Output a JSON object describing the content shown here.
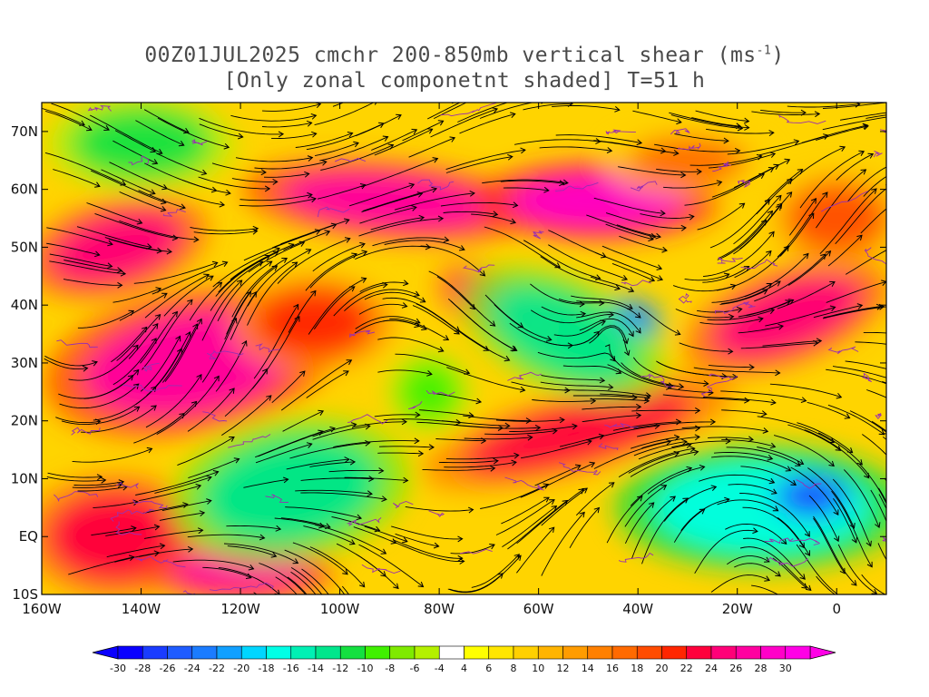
{
  "title": {
    "line1_prefix": "00Z01JUL2025 cmchr 200-850mb vertical shear (ms",
    "line1_sup": "-1",
    "line1_suffix": ")",
    "line2": "[Only zonal componetnt shaded] T=51 h"
  },
  "axes": {
    "lon_labels": [
      "160W",
      "140W",
      "120W",
      "100W",
      "80W",
      "60W",
      "40W",
      "20W",
      "0"
    ],
    "lon_values": [
      -160,
      -140,
      -120,
      -100,
      -80,
      -60,
      -40,
      -20,
      0
    ],
    "lat_labels": [
      "10S",
      "EQ",
      "10N",
      "20N",
      "30N",
      "40N",
      "50N",
      "60N",
      "70N"
    ],
    "lat_values": [
      -10,
      0,
      10,
      20,
      30,
      40,
      50,
      60,
      70
    ],
    "lon_range": [
      -160,
      10
    ],
    "lat_range": [
      -10,
      75
    ]
  },
  "colorbar": {
    "labels": [
      "-30",
      "-28",
      "-26",
      "-24",
      "-22",
      "-20",
      "-18",
      "-16",
      "-14",
      "-12",
      "-10",
      "-8",
      "-6",
      "-4",
      "4",
      "6",
      "8",
      "10",
      "12",
      "14",
      "16",
      "18",
      "20",
      "22",
      "24",
      "26",
      "28",
      "30"
    ],
    "colors": [
      "#0a00ff",
      "#1a3cff",
      "#1f5cff",
      "#1b7cff",
      "#10a0ff",
      "#00d6ff",
      "#00ffe6",
      "#00f0b4",
      "#00e68c",
      "#14e040",
      "#40f000",
      "#7fea00",
      "#b4f000",
      "#ffffff",
      "#ffff00",
      "#ffe600",
      "#ffd000",
      "#ffb400",
      "#ff9c00",
      "#ff8000",
      "#ff6a00",
      "#ff4c00",
      "#ff2600",
      "#ff003c",
      "#ff0078",
      "#ff00a0",
      "#ff00c8",
      "#ff00e6"
    ]
  },
  "shear_field": {
    "description_units": "ms-1 zonal shear",
    "features": [
      {
        "lon": -130,
        "lat": 30,
        "value": 26,
        "rx": 22,
        "ry": 9,
        "rot": -10
      },
      {
        "lon": -145,
        "lat": 50,
        "value": 24,
        "rx": 14,
        "ry": 6,
        "rot": -15
      },
      {
        "lon": -90,
        "lat": 58,
        "value": 26,
        "rx": 22,
        "ry": 5,
        "rot": 5
      },
      {
        "lon": -48,
        "lat": 58,
        "value": 28,
        "rx": 18,
        "ry": 5,
        "rot": 0
      },
      {
        "lon": -68,
        "lat": 40,
        "value": 24,
        "rx": 10,
        "ry": 4,
        "rot": 25
      },
      {
        "lon": -105,
        "lat": 37,
        "value": 20,
        "rx": 12,
        "ry": 6,
        "rot": 0
      },
      {
        "lon": -52,
        "lat": 18,
        "value": 22,
        "rx": 24,
        "ry": 5,
        "rot": -15
      },
      {
        "lon": -10,
        "lat": 38,
        "value": 24,
        "rx": 16,
        "ry": 6,
        "rot": -20
      },
      {
        "lon": -145,
        "lat": 0,
        "value": 22,
        "rx": 14,
        "ry": 8,
        "rot": 0
      },
      {
        "lon": -120,
        "lat": -6,
        "value": 26,
        "rx": 14,
        "ry": 4,
        "rot": 0
      },
      {
        "lon": -110,
        "lat": 8,
        "value": -14,
        "rx": 18,
        "ry": 9,
        "rot": -10
      },
      {
        "lon": -55,
        "lat": 35,
        "value": -14,
        "rx": 16,
        "ry": 7,
        "rot": 25
      },
      {
        "lon": -40,
        "lat": 38,
        "value": -26,
        "rx": 4,
        "ry": 2,
        "rot": 25
      },
      {
        "lon": -15,
        "lat": 5,
        "value": -18,
        "rx": 22,
        "ry": 8,
        "rot": 0
      },
      {
        "lon": -5,
        "lat": 7,
        "value": -28,
        "rx": 6,
        "ry": 3,
        "rot": 0
      },
      {
        "lon": -140,
        "lat": 68,
        "value": -12,
        "rx": 14,
        "ry": 6,
        "rot": 0
      },
      {
        "lon": -82,
        "lat": 25,
        "value": -10,
        "rx": 6,
        "ry": 5,
        "rot": 0
      },
      {
        "lon": 0,
        "lat": 55,
        "value": 18,
        "rx": 10,
        "ry": 6,
        "rot": 0
      },
      {
        "lon": -30,
        "lat": 65,
        "value": 16,
        "rx": 12,
        "ry": 4,
        "rot": 0
      }
    ]
  }
}
